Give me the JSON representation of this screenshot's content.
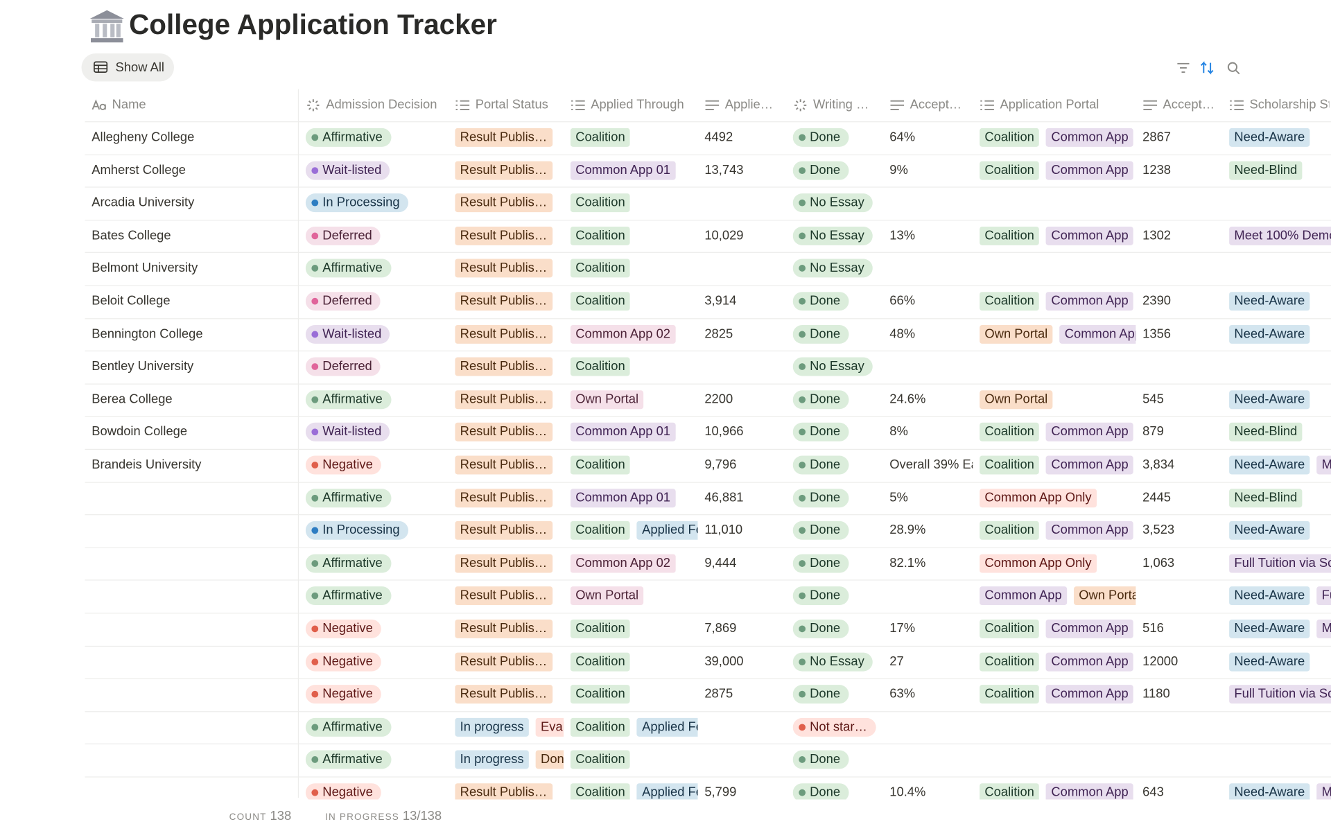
{
  "header": {
    "title": "College Application Tracker"
  },
  "toolbar": {
    "view": "Show All"
  },
  "columns": [
    "Name",
    "Admission Decision",
    "Portal Status",
    "Applied Through",
    "Applie…",
    "Writing …",
    "Accept…",
    "Application Portal",
    "Accept…",
    "Scholarship St"
  ],
  "rows": [
    {
      "name": "Allegheny College",
      "decision": {
        "text": "Affirmative",
        "color": "green"
      },
      "portal_status": [
        {
          "text": "Result Publis…",
          "color": "orange"
        }
      ],
      "applied_through": [
        {
          "text": "Coalition",
          "color": "green"
        }
      ],
      "applied": "4492",
      "writing": {
        "text": "Done",
        "color": "green"
      },
      "accept": "64%",
      "application_portal": [
        {
          "text": "Coalition",
          "color": "green"
        },
        {
          "text": "Common App",
          "color": "purple"
        }
      ],
      "accept_2": "2867",
      "scholarship": [
        {
          "text": "Need-Aware",
          "color": "blue"
        }
      ]
    },
    {
      "name": "Amherst College",
      "decision": {
        "text": "Wait-listed",
        "color": "purple"
      },
      "portal_status": [
        {
          "text": "Result Publis…",
          "color": "orange"
        }
      ],
      "applied_through": [
        {
          "text": "Common App 01",
          "color": "purple"
        }
      ],
      "applied": "13,743",
      "writing": {
        "text": "Done",
        "color": "green"
      },
      "accept": "9%",
      "application_portal": [
        {
          "text": "Coalition",
          "color": "green"
        },
        {
          "text": "Common App",
          "color": "purple"
        }
      ],
      "accept_2": "1238",
      "scholarship": [
        {
          "text": "Need-Blind",
          "color": "green"
        }
      ]
    },
    {
      "name": "Arcadia University",
      "decision": {
        "text": "In Processing",
        "color": "blue"
      },
      "portal_status": [
        {
          "text": "Result Publis…",
          "color": "orange"
        }
      ],
      "applied_through": [
        {
          "text": "Coalition",
          "color": "green"
        }
      ],
      "applied": null,
      "writing": {
        "text": "No Essay",
        "color": "green"
      },
      "accept": null,
      "application_portal": [],
      "accept_2": null,
      "scholarship": []
    },
    {
      "name": "Bates College",
      "decision": {
        "text": "Deferred",
        "color": "pink"
      },
      "portal_status": [
        {
          "text": "Result Publis…",
          "color": "orange"
        }
      ],
      "applied_through": [
        {
          "text": "Coalition",
          "color": "green"
        }
      ],
      "applied": "10,029",
      "writing": {
        "text": "No Essay",
        "color": "green"
      },
      "accept": "13%",
      "application_portal": [
        {
          "text": "Coalition",
          "color": "green"
        },
        {
          "text": "Common App",
          "color": "purple"
        }
      ],
      "accept_2": "1302",
      "scholarship": [
        {
          "text": "Meet 100% Demo",
          "color": "purple"
        }
      ]
    },
    {
      "name": "Belmont University",
      "decision": {
        "text": "Affirmative",
        "color": "green"
      },
      "portal_status": [
        {
          "text": "Result Publis…",
          "color": "orange"
        }
      ],
      "applied_through": [
        {
          "text": "Coalition",
          "color": "green"
        }
      ],
      "applied": null,
      "writing": {
        "text": "No Essay",
        "color": "green"
      },
      "accept": null,
      "application_portal": [],
      "accept_2": null,
      "scholarship": []
    },
    {
      "name": "Beloit College",
      "decision": {
        "text": "Deferred",
        "color": "pink"
      },
      "portal_status": [
        {
          "text": "Result Publis…",
          "color": "orange"
        }
      ],
      "applied_through": [
        {
          "text": "Coalition",
          "color": "green"
        }
      ],
      "applied": "3,914",
      "writing": {
        "text": "Done",
        "color": "green"
      },
      "accept": "66%",
      "application_portal": [
        {
          "text": "Coalition",
          "color": "green"
        },
        {
          "text": "Common App",
          "color": "purple"
        }
      ],
      "accept_2": "2390",
      "scholarship": [
        {
          "text": "Need-Aware",
          "color": "blue"
        }
      ]
    },
    {
      "name": "Bennington College",
      "decision": {
        "text": "Wait-listed",
        "color": "purple"
      },
      "portal_status": [
        {
          "text": "Result Publis…",
          "color": "orange"
        }
      ],
      "applied_through": [
        {
          "text": "Common App 02",
          "color": "pink"
        }
      ],
      "applied": "2825",
      "writing": {
        "text": "Done",
        "color": "green"
      },
      "accept": "48%",
      "application_portal": [
        {
          "text": "Own Portal",
          "color": "orange"
        },
        {
          "text": "Common App",
          "color": "purple"
        }
      ],
      "accept_2": "1356",
      "scholarship": [
        {
          "text": "Need-Aware",
          "color": "blue"
        }
      ]
    },
    {
      "name": "Bentley University",
      "decision": {
        "text": "Deferred",
        "color": "pink"
      },
      "portal_status": [
        {
          "text": "Result Publis…",
          "color": "orange"
        }
      ],
      "applied_through": [
        {
          "text": "Coalition",
          "color": "green"
        }
      ],
      "applied": null,
      "writing": {
        "text": "No Essay",
        "color": "green"
      },
      "accept": null,
      "application_portal": [],
      "accept_2": null,
      "scholarship": []
    },
    {
      "name": "Berea College",
      "decision": {
        "text": "Affirmative",
        "color": "green"
      },
      "portal_status": [
        {
          "text": "Result Publis…",
          "color": "orange"
        }
      ],
      "applied_through": [
        {
          "text": "Own Portal",
          "color": "pink"
        }
      ],
      "applied": "2200",
      "writing": {
        "text": "Done",
        "color": "green"
      },
      "accept": "24.6%",
      "application_portal": [
        {
          "text": "Own Portal",
          "color": "orange"
        }
      ],
      "accept_2": "545",
      "scholarship": [
        {
          "text": "Need-Aware",
          "color": "blue"
        }
      ]
    },
    {
      "name": "Bowdoin College",
      "decision": {
        "text": "Wait-listed",
        "color": "purple"
      },
      "portal_status": [
        {
          "text": "Result Publis…",
          "color": "orange"
        }
      ],
      "applied_through": [
        {
          "text": "Common App 01",
          "color": "purple"
        }
      ],
      "applied": "10,966",
      "writing": {
        "text": "Done",
        "color": "green"
      },
      "accept": "8%",
      "application_portal": [
        {
          "text": "Coalition",
          "color": "green"
        },
        {
          "text": "Common App",
          "color": "purple"
        }
      ],
      "accept_2": "879",
      "scholarship": [
        {
          "text": "Need-Blind",
          "color": "green"
        }
      ]
    },
    {
      "name": "Brandeis University",
      "decision": {
        "text": "Negative",
        "color": "red"
      },
      "portal_status": [
        {
          "text": "Result Publis…",
          "color": "orange"
        }
      ],
      "applied_through": [
        {
          "text": "Coalition",
          "color": "green"
        }
      ],
      "applied": "9,796",
      "writing": {
        "text": "Done",
        "color": "green"
      },
      "accept": "Overall 39% Ea",
      "application_portal": [
        {
          "text": "Coalition",
          "color": "green"
        },
        {
          "text": "Common App",
          "color": "purple"
        }
      ],
      "accept_2": "3,834",
      "scholarship": [
        {
          "text": "Need-Aware",
          "color": "blue"
        },
        {
          "text": "M",
          "color": "purple"
        }
      ]
    },
    {
      "name": null,
      "decision": {
        "text": "Affirmative",
        "color": "green"
      },
      "portal_status": [
        {
          "text": "Result Publis…",
          "color": "orange"
        }
      ],
      "applied_through": [
        {
          "text": "Common App 01",
          "color": "purple"
        }
      ],
      "applied": "46,881",
      "writing": {
        "text": "Done",
        "color": "green"
      },
      "accept": "5%",
      "application_portal": [
        {
          "text": "Common App Only",
          "color": "red"
        }
      ],
      "accept_2": "2445",
      "scholarship": [
        {
          "text": "Need-Blind",
          "color": "green"
        }
      ]
    },
    {
      "name": null,
      "decision": {
        "text": "In Processing",
        "color": "blue"
      },
      "portal_status": [
        {
          "text": "Result Publis…",
          "color": "orange"
        }
      ],
      "applied_through": [
        {
          "text": "Coalition",
          "color": "green"
        },
        {
          "text": "Applied Fe",
          "color": "blue"
        }
      ],
      "applied": "11,010",
      "writing": {
        "text": "Done",
        "color": "green"
      },
      "accept": "28.9%",
      "application_portal": [
        {
          "text": "Coalition",
          "color": "green"
        },
        {
          "text": "Common App",
          "color": "purple"
        }
      ],
      "accept_2": "3,523",
      "scholarship": [
        {
          "text": "Need-Aware",
          "color": "blue"
        }
      ]
    },
    {
      "name": null,
      "decision": {
        "text": "Affirmative",
        "color": "green"
      },
      "portal_status": [
        {
          "text": "Result Publis…",
          "color": "orange"
        }
      ],
      "applied_through": [
        {
          "text": "Common App 02",
          "color": "pink"
        }
      ],
      "applied": "9,444",
      "writing": {
        "text": "Done",
        "color": "green"
      },
      "accept": "82.1%",
      "application_portal": [
        {
          "text": "Common App Only",
          "color": "red"
        }
      ],
      "accept_2": "1,063",
      "scholarship": [
        {
          "text": "Full Tuition via Sc",
          "color": "purple"
        }
      ]
    },
    {
      "name": null,
      "decision": {
        "text": "Affirmative",
        "color": "green"
      },
      "portal_status": [
        {
          "text": "Result Publis…",
          "color": "orange"
        }
      ],
      "applied_through": [
        {
          "text": "Own Portal",
          "color": "pink"
        }
      ],
      "applied": null,
      "writing": {
        "text": "Done",
        "color": "green"
      },
      "accept": null,
      "application_portal": [
        {
          "text": "Common App",
          "color": "purple"
        },
        {
          "text": "Own Porta",
          "color": "orange"
        }
      ],
      "accept_2": null,
      "scholarship": [
        {
          "text": "Need-Aware",
          "color": "blue"
        },
        {
          "text": "Fu",
          "color": "purple"
        }
      ]
    },
    {
      "name": null,
      "decision": {
        "text": "Negative",
        "color": "red"
      },
      "portal_status": [
        {
          "text": "Result Publis…",
          "color": "orange"
        }
      ],
      "applied_through": [
        {
          "text": "Coalition",
          "color": "green"
        }
      ],
      "applied": "7,869",
      "writing": {
        "text": "Done",
        "color": "green"
      },
      "accept": "17%",
      "application_portal": [
        {
          "text": "Coalition",
          "color": "green"
        },
        {
          "text": "Common App",
          "color": "purple"
        }
      ],
      "accept_2": "516",
      "scholarship": [
        {
          "text": "Need-Aware",
          "color": "blue"
        },
        {
          "text": "M",
          "color": "purple"
        }
      ]
    },
    {
      "name": null,
      "decision": {
        "text": "Negative",
        "color": "red"
      },
      "portal_status": [
        {
          "text": "Result Publis…",
          "color": "orange"
        }
      ],
      "applied_through": [
        {
          "text": "Coalition",
          "color": "green"
        }
      ],
      "applied": "39,000",
      "writing": {
        "text": "No Essay",
        "color": "green"
      },
      "accept": "27",
      "application_portal": [
        {
          "text": "Coalition",
          "color": "green"
        },
        {
          "text": "Common App",
          "color": "purple"
        }
      ],
      "accept_2": "12000",
      "scholarship": [
        {
          "text": "Need-Aware",
          "color": "blue"
        }
      ]
    },
    {
      "name": null,
      "decision": {
        "text": "Negative",
        "color": "red"
      },
      "portal_status": [
        {
          "text": "Result Publis…",
          "color": "orange"
        }
      ],
      "applied_through": [
        {
          "text": "Coalition",
          "color": "green"
        }
      ],
      "applied": "2875",
      "writing": {
        "text": "Done",
        "color": "green"
      },
      "accept": "63%",
      "application_portal": [
        {
          "text": "Coalition",
          "color": "green"
        },
        {
          "text": "Common App",
          "color": "purple"
        }
      ],
      "accept_2": "1180",
      "scholarship": [
        {
          "text": "Full Tuition via Sc",
          "color": "purple"
        }
      ]
    },
    {
      "name": null,
      "decision": {
        "text": "Affirmative",
        "color": "green"
      },
      "portal_status": [
        {
          "text": "In progress",
          "color": "blue"
        },
        {
          "text": "Eval",
          "color": "red"
        }
      ],
      "applied_through": [
        {
          "text": "Coalition",
          "color": "green"
        },
        {
          "text": "Applied Fe",
          "color": "blue"
        }
      ],
      "applied": null,
      "writing": {
        "text": "Not star…",
        "color": "red"
      },
      "accept": null,
      "application_portal": [],
      "accept_2": null,
      "scholarship": []
    },
    {
      "name": null,
      "decision": {
        "text": "Affirmative",
        "color": "green"
      },
      "portal_status": [
        {
          "text": "In progress",
          "color": "blue"
        },
        {
          "text": "Don",
          "color": "orange"
        }
      ],
      "applied_through": [
        {
          "text": "Coalition",
          "color": "green"
        }
      ],
      "applied": null,
      "writing": {
        "text": "Done",
        "color": "green"
      },
      "accept": null,
      "application_portal": [],
      "accept_2": null,
      "scholarship": []
    },
    {
      "name": null,
      "decision": {
        "text": "Negative",
        "color": "red"
      },
      "portal_status": [
        {
          "text": "Result Publis…",
          "color": "orange"
        }
      ],
      "applied_through": [
        {
          "text": "Coalition",
          "color": "green"
        },
        {
          "text": "Applied Fe",
          "color": "blue"
        }
      ],
      "applied": "5,799",
      "writing": {
        "text": "Done",
        "color": "green"
      },
      "accept": "10.4%",
      "application_portal": [
        {
          "text": "Coalition",
          "color": "green"
        },
        {
          "text": "Common App",
          "color": "purple"
        }
      ],
      "accept_2": "643",
      "scholarship": [
        {
          "text": "Need-Aware",
          "color": "blue"
        },
        {
          "text": "M",
          "color": "purple"
        }
      ]
    }
  ],
  "footer": {
    "count_label": "COUNT",
    "count": "138",
    "progress_label": "IN PROGRESS",
    "progress": "13/138"
  }
}
